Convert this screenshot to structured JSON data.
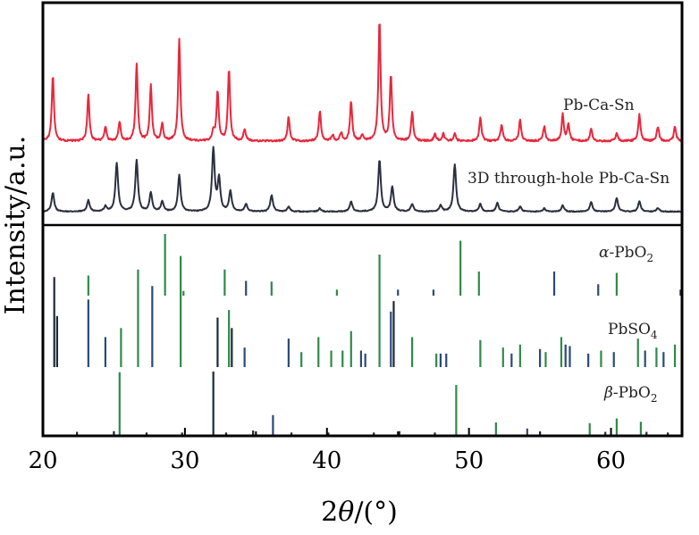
{
  "chart_data": {
    "type": "line",
    "title": "",
    "xlabel_main": "2",
    "xlabel_theta": "θ",
    "xlabel_unit": "/(°)",
    "ylabel": "Intensity/a.u.",
    "xlim": [
      20,
      65
    ],
    "xticks": [
      {
        "value": 20,
        "label": "20"
      },
      {
        "value": 30,
        "label": "30"
      },
      {
        "value": 40,
        "label": "40"
      },
      {
        "value": 50,
        "label": "50"
      },
      {
        "value": 60,
        "label": "60"
      }
    ],
    "colors": {
      "pb_ca_sn": "#e8283c",
      "through_hole": "#2a3040",
      "ref_green": "#2f8a4a",
      "ref_dark": "#1e2a38",
      "ref_blue": "#2a4a78"
    },
    "series": [
      {
        "name": "Pb-Ca-Sn",
        "label": "Pb-Ca-Sn",
        "peaks": [
          [
            20.7,
            0.55
          ],
          [
            23.2,
            0.38
          ],
          [
            24.4,
            0.12
          ],
          [
            25.4,
            0.16
          ],
          [
            26.6,
            0.64
          ],
          [
            27.6,
            0.46
          ],
          [
            28.4,
            0.14
          ],
          [
            29.6,
            0.84
          ],
          [
            32.0,
            0.08
          ],
          [
            32.3,
            0.41
          ],
          [
            33.1,
            0.6
          ],
          [
            34.2,
            0.1
          ],
          [
            37.3,
            0.2
          ],
          [
            39.5,
            0.25
          ],
          [
            40.4,
            0.05
          ],
          [
            41.0,
            0.07
          ],
          [
            41.7,
            0.33
          ],
          [
            42.5,
            0.05
          ],
          [
            43.7,
            1.0
          ],
          [
            44.5,
            0.55
          ],
          [
            46.0,
            0.24
          ],
          [
            47.6,
            0.06
          ],
          [
            48.2,
            0.06
          ],
          [
            49.0,
            0.06
          ],
          [
            50.8,
            0.2
          ],
          [
            52.3,
            0.14
          ],
          [
            53.6,
            0.18
          ],
          [
            55.3,
            0.12
          ],
          [
            56.6,
            0.22
          ],
          [
            57.0,
            0.14
          ],
          [
            58.6,
            0.1
          ],
          [
            60.4,
            0.07
          ],
          [
            62.0,
            0.22
          ],
          [
            63.3,
            0.12
          ],
          [
            64.5,
            0.12
          ]
        ]
      },
      {
        "name": "3D through-hole Pb-Ca-Sn",
        "label": "3D through-hole Pb-Ca-Sn",
        "peaks": [
          [
            20.7,
            0.3
          ],
          [
            23.2,
            0.18
          ],
          [
            24.4,
            0.08
          ],
          [
            25.2,
            0.78
          ],
          [
            26.6,
            0.82
          ],
          [
            27.6,
            0.3
          ],
          [
            28.4,
            0.16
          ],
          [
            29.6,
            0.58
          ],
          [
            32.0,
            1.0
          ],
          [
            32.4,
            0.52
          ],
          [
            33.2,
            0.32
          ],
          [
            34.3,
            0.12
          ],
          [
            36.1,
            0.26
          ],
          [
            37.3,
            0.08
          ],
          [
            39.5,
            0.05
          ],
          [
            41.7,
            0.16
          ],
          [
            43.7,
            0.82
          ],
          [
            44.6,
            0.4
          ],
          [
            46.0,
            0.12
          ],
          [
            48.0,
            0.1
          ],
          [
            49.0,
            0.76
          ],
          [
            50.8,
            0.12
          ],
          [
            52.0,
            0.14
          ],
          [
            53.6,
            0.08
          ],
          [
            55.3,
            0.05
          ],
          [
            56.6,
            0.1
          ],
          [
            58.6,
            0.15
          ],
          [
            60.4,
            0.22
          ],
          [
            62.0,
            0.16
          ],
          [
            63.3,
            0.06
          ]
        ]
      }
    ],
    "reference_patterns": [
      {
        "name_prefix": "α",
        "name_base": "-PbO",
        "name_sub": "2",
        "lines": [
          [
            23.2,
            0.3,
            "g"
          ],
          [
            28.6,
            0.92,
            "g"
          ],
          [
            29.9,
            0.07,
            "g"
          ],
          [
            32.8,
            0.39,
            "g"
          ],
          [
            34.3,
            0.22,
            "b"
          ],
          [
            36.1,
            0.21,
            "g"
          ],
          [
            40.7,
            0.09,
            "g"
          ],
          [
            45.0,
            0.09,
            "b"
          ],
          [
            47.5,
            0.09,
            "b"
          ],
          [
            49.4,
            0.82,
            "g"
          ],
          [
            50.7,
            0.36,
            "g"
          ],
          [
            56.0,
            0.36,
            "b"
          ],
          [
            59.1,
            0.17,
            "b"
          ],
          [
            60.4,
            0.34,
            "g"
          ],
          [
            64.9,
            0.09,
            "d"
          ]
        ]
      },
      {
        "name_prefix": "",
        "name_base": "PbSO",
        "name_sub": "4",
        "lines": [
          [
            20.8,
            0.6,
            "d"
          ],
          [
            21.0,
            0.34,
            "d"
          ],
          [
            23.2,
            0.45,
            "b"
          ],
          [
            24.4,
            0.2,
            "b"
          ],
          [
            25.5,
            0.26,
            "g"
          ],
          [
            26.7,
            0.65,
            "g"
          ],
          [
            27.7,
            0.54,
            "b"
          ],
          [
            29.7,
            0.74,
            "g"
          ],
          [
            32.3,
            0.33,
            "d"
          ],
          [
            33.1,
            0.38,
            "g"
          ],
          [
            33.3,
            0.26,
            "d"
          ],
          [
            34.2,
            0.13,
            "b"
          ],
          [
            37.3,
            0.19,
            "b"
          ],
          [
            38.2,
            0.1,
            "g"
          ],
          [
            39.4,
            0.2,
            "g"
          ],
          [
            40.3,
            0.11,
            "g"
          ],
          [
            41.1,
            0.11,
            "g"
          ],
          [
            41.7,
            0.24,
            "g"
          ],
          [
            42.4,
            0.11,
            "b"
          ],
          [
            42.7,
            0.09,
            "b"
          ],
          [
            43.7,
            0.75,
            "g"
          ],
          [
            44.5,
            0.37,
            "b"
          ],
          [
            44.7,
            0.44,
            "d"
          ],
          [
            46.0,
            0.2,
            "g"
          ],
          [
            47.7,
            0.09,
            "g"
          ],
          [
            48.0,
            0.09,
            "b"
          ],
          [
            48.4,
            0.09,
            "b"
          ],
          [
            50.8,
            0.18,
            "g"
          ],
          [
            52.4,
            0.13,
            "g"
          ],
          [
            53.0,
            0.09,
            "b"
          ],
          [
            53.6,
            0.15,
            "g"
          ],
          [
            55.0,
            0.12,
            "b"
          ],
          [
            55.4,
            0.1,
            "g"
          ],
          [
            56.5,
            0.2,
            "g"
          ],
          [
            56.8,
            0.15,
            "b"
          ],
          [
            57.1,
            0.14,
            "b"
          ],
          [
            58.4,
            0.09,
            "b"
          ],
          [
            59.3,
            0.11,
            "g"
          ],
          [
            60.2,
            0.1,
            "b"
          ],
          [
            61.9,
            0.19,
            "g"
          ],
          [
            62.4,
            0.11,
            "b"
          ],
          [
            63.2,
            0.13,
            "g"
          ],
          [
            63.7,
            0.1,
            "b"
          ],
          [
            64.5,
            0.15,
            "g"
          ]
        ]
      },
      {
        "name_prefix": "β",
        "name_base": "-PbO",
        "name_sub": "2",
        "lines": [
          [
            22.4,
            0.06,
            "d"
          ],
          [
            25.0,
            0.07,
            "d"
          ],
          [
            25.4,
            0.95,
            "g"
          ],
          [
            27.3,
            0.05,
            "d"
          ],
          [
            29.8,
            0.05,
            "d"
          ],
          [
            32.0,
            0.96,
            "d"
          ],
          [
            32.9,
            0.05,
            "d"
          ],
          [
            34.8,
            0.08,
            "d"
          ],
          [
            36.2,
            0.31,
            "b"
          ],
          [
            37.5,
            0.05,
            "d"
          ],
          [
            40.1,
            0.05,
            "d"
          ],
          [
            43.3,
            0.05,
            "d"
          ],
          [
            45.1,
            0.07,
            "d"
          ],
          [
            47.6,
            0.05,
            "d"
          ],
          [
            49.1,
            0.76,
            "g"
          ],
          [
            51.9,
            0.2,
            "g"
          ],
          [
            54.1,
            0.11,
            "b"
          ],
          [
            55.0,
            0.06,
            "d"
          ],
          [
            58.5,
            0.19,
            "g"
          ],
          [
            59.6,
            0.06,
            "d"
          ],
          [
            60.4,
            0.26,
            "g"
          ],
          [
            62.1,
            0.21,
            "g"
          ],
          [
            62.5,
            0.06,
            "d"
          ],
          [
            64.0,
            0.05,
            "d"
          ]
        ]
      }
    ],
    "grid": false,
    "legend": "none"
  }
}
